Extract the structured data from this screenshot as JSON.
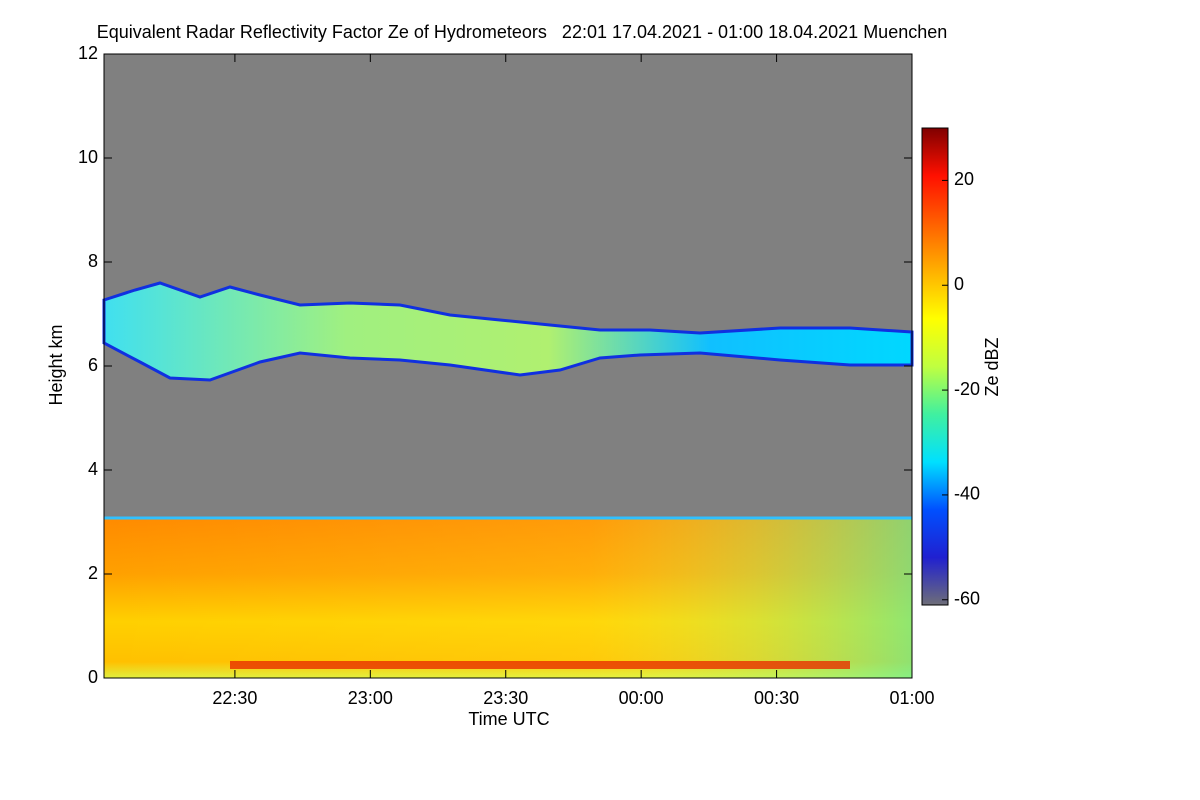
{
  "chart_data": {
    "type": "heatmap",
    "title": "Equivalent Radar Reflectivity Factor Ze of Hydrometeors   22:01 17.04.2021 - 01:00 18.04.2021 Muenchen",
    "xlabel": "Time UTC",
    "ylabel": "Height km",
    "colorbar_label": "Ze dBZ",
    "xlim": [
      1321,
      1500
    ],
    "xticks": [
      {
        "value": 1350,
        "label": "22:30"
      },
      {
        "value": 1380,
        "label": "23:00"
      },
      {
        "value": 1410,
        "label": "23:30"
      },
      {
        "value": 1440,
        "label": "00:00"
      },
      {
        "value": 1470,
        "label": "00:30"
      },
      {
        "value": 1500,
        "label": "01:00"
      }
    ],
    "ylim": [
      0,
      12
    ],
    "yticks": [
      0,
      2,
      4,
      6,
      8,
      10,
      12
    ],
    "zlim": [
      -61,
      30
    ],
    "zticks": [
      -60,
      -40,
      -20,
      0,
      20
    ],
    "colormap": [
      "#6e6e78",
      "#2020d0",
      "#0050ff",
      "#00e0ff",
      "#40f0a0",
      "#c0ff40",
      "#ffff00",
      "#ffb000",
      "#ff6000",
      "#ff1000",
      "#800000"
    ]
  }
}
